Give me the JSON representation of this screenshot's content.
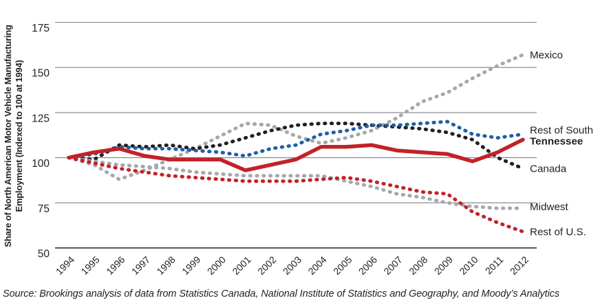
{
  "chart_data": {
    "type": "line",
    "title": "",
    "ylabel_line1": "Share of North American Motor Vehicle Manufacturing",
    "ylabel_line2": "Employment (Indexed to 100 at 1994)",
    "xlabel": "",
    "x": [
      1994,
      1995,
      1996,
      1997,
      1998,
      1999,
      2000,
      2001,
      2002,
      2003,
      2004,
      2005,
      2006,
      2007,
      2008,
      2009,
      2010,
      2011,
      2012
    ],
    "yticks": [
      175,
      150,
      125,
      100,
      75,
      50
    ],
    "ylim": [
      50,
      185
    ],
    "grid": true,
    "legend_position": "right-end-labels",
    "series": [
      {
        "name": "Mexico",
        "color": "#a6a8ab",
        "style": "dotted",
        "bold_label": false,
        "label_dy": 0,
        "values": [
          100,
          96,
          88,
          93,
          99,
          105,
          112,
          119,
          118,
          112,
          108,
          111,
          115,
          122,
          131,
          136,
          144,
          151,
          157
        ]
      },
      {
        "name": "Canada",
        "color": "#231f20",
        "style": "dotted",
        "bold_label": false,
        "label_dy": 0,
        "values": [
          100,
          99,
          107,
          106,
          107,
          105,
          107,
          111,
          115,
          118,
          119,
          119,
          118,
          117,
          116,
          114,
          110,
          100,
          94
        ]
      },
      {
        "name": "Rest of South",
        "color": "#1f5fa6",
        "style": "dotted",
        "bold_label": false,
        "label_dy": -6,
        "values": [
          100,
          102,
          106,
          105,
          105,
          104,
          103,
          101,
          105,
          107,
          113,
          115,
          118,
          118,
          119,
          120,
          113,
          111,
          113
        ]
      },
      {
        "name": "Midwest",
        "color": "#a6a8ab",
        "style": "dotted",
        "bold_label": false,
        "label_dy": -2,
        "values": [
          100,
          98,
          96,
          95,
          94,
          92,
          91,
          90,
          90,
          90,
          90,
          87,
          84,
          80,
          78,
          75,
          73,
          72,
          72
        ]
      },
      {
        "name": "Rest of U.S.",
        "color": "#c32128",
        "style": "dotted",
        "bold_label": false,
        "label_dy": 0,
        "values": [
          100,
          97,
          94,
          92,
          90,
          89,
          88,
          87,
          87,
          87,
          88,
          89,
          87,
          84,
          81,
          80,
          70,
          64,
          59
        ]
      },
      {
        "name": "Tennessee",
        "color": "#c32128",
        "style": "solid",
        "bold_label": true,
        "label_dy": 2,
        "values": [
          100,
          103,
          105,
          101,
          99,
          99,
          99,
          93,
          96,
          99,
          106,
          106,
          107,
          104,
          103,
          102,
          98,
          103,
          110
        ]
      }
    ],
    "source": "Source: Brookings analysis of data from Statistics Canada, National Institute of Statistics and Geography, and Moody’s Analytics",
    "colors": {
      "gridline": "#808184",
      "axis": "#231f20",
      "text": "#231f20"
    }
  }
}
